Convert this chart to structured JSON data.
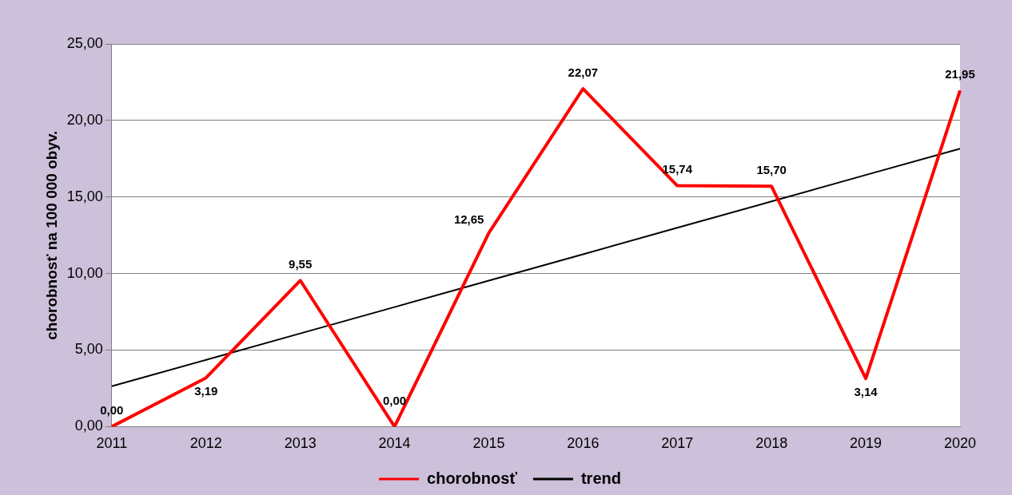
{
  "chart_data": {
    "type": "line",
    "ylabel": "chorobnosť na 100 000 obyv.",
    "categories": [
      "2011",
      "2012",
      "2013",
      "2014",
      "2015",
      "2016",
      "2017",
      "2018",
      "2019",
      "2020"
    ],
    "series": [
      {
        "name": "chorobnosť",
        "color": "#ff0000",
        "values": [
          0,
          3.19,
          9.55,
          0,
          12.65,
          22.07,
          15.74,
          15.7,
          3.14,
          21.95
        ],
        "value_labels": [
          "0,00",
          "3,19",
          "9,55",
          "0,00",
          "12,65",
          "22,07",
          "15,74",
          "15,70",
          "3,14",
          "21,95"
        ]
      },
      {
        "name": "trend",
        "color": "#000000",
        "values": [
          2.64,
          4.36,
          6.09,
          7.81,
          9.54,
          11.26,
          12.99,
          14.71,
          16.44,
          18.16
        ]
      }
    ],
    "ylim": [
      0,
      25
    ],
    "yticks": [
      {
        "value": 0,
        "label": "0,00"
      },
      {
        "value": 5,
        "label": "5,00"
      },
      {
        "value": 10,
        "label": "10,00"
      },
      {
        "value": 15,
        "label": "15,00"
      },
      {
        "value": 20,
        "label": "20,00"
      },
      {
        "value": 25,
        "label": "25,00"
      }
    ],
    "grid": "y",
    "legend": "bottom",
    "marker": "none",
    "line_style": "solid"
  }
}
